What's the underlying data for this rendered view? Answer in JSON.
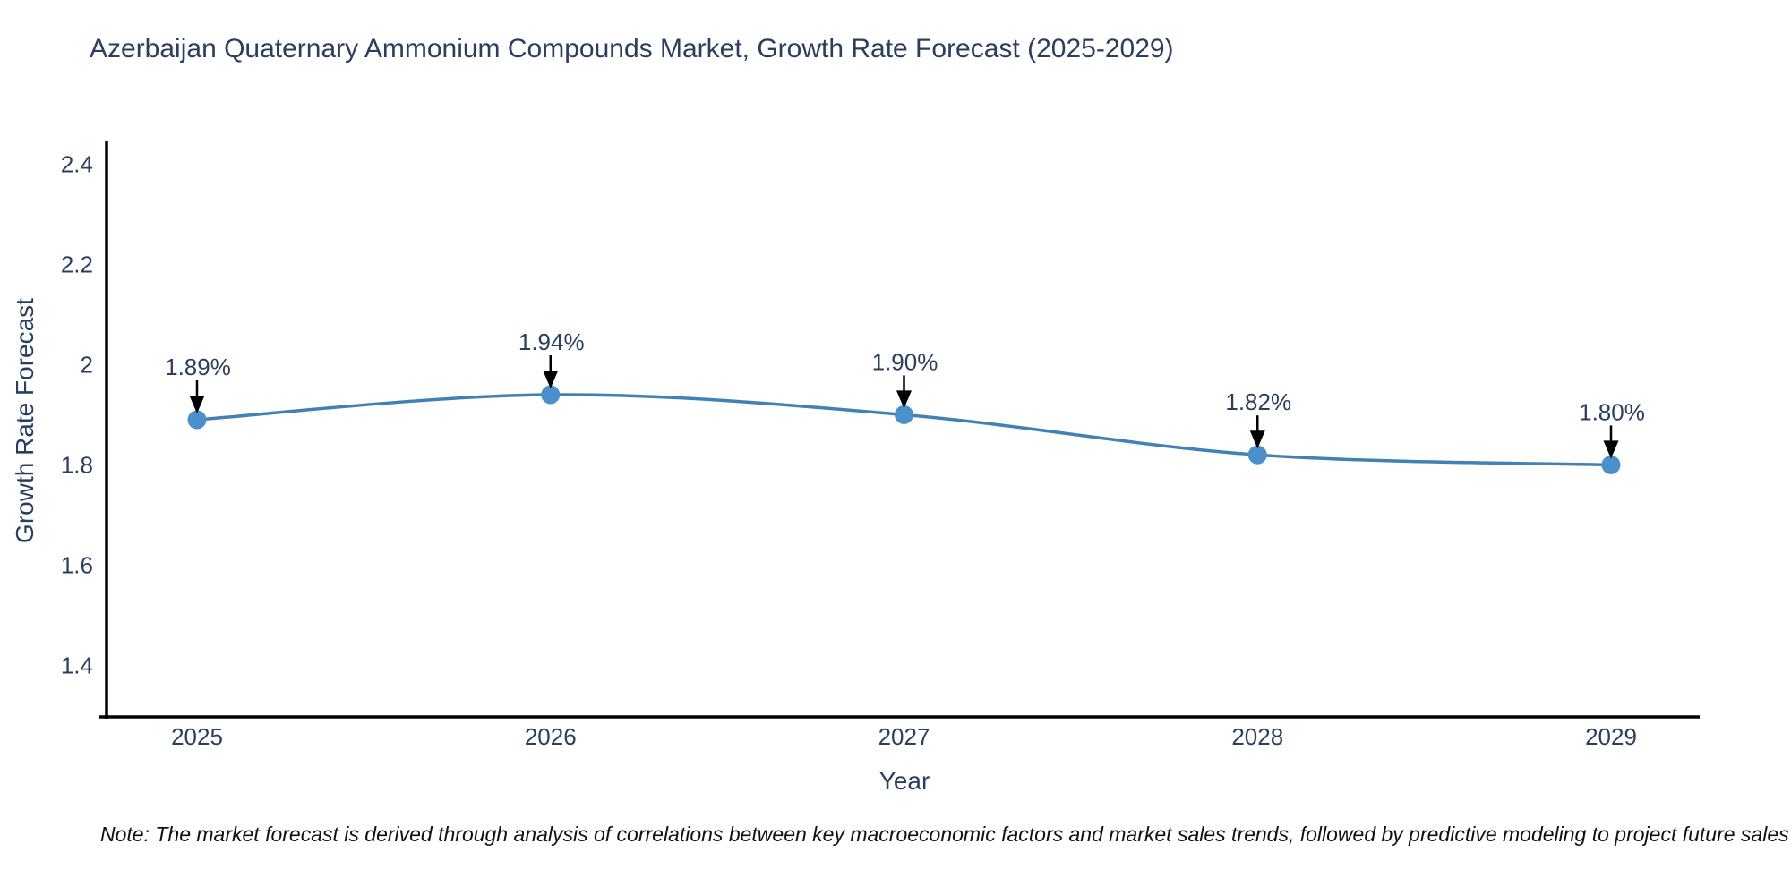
{
  "chart_data": {
    "type": "line",
    "title": "Azerbaijan Quaternary Ammonium Compounds Market, Growth Rate Forecast (2025-2029)",
    "xlabel": "Year",
    "ylabel": "Growth Rate Forecast",
    "x": [
      2025,
      2026,
      2027,
      2028,
      2029
    ],
    "x_tick_labels": [
      "2025",
      "2026",
      "2027",
      "2028",
      "2029"
    ],
    "series": [
      {
        "name": "Growth Rate Forecast",
        "values": [
          1.89,
          1.94,
          1.9,
          1.82,
          1.8
        ],
        "point_labels": [
          "1.89%",
          "1.94%",
          "1.90%",
          "1.82%",
          "1.80%"
        ]
      }
    ],
    "y_ticks": [
      1.4,
      1.6,
      1.8,
      2,
      2.2,
      2.4
    ],
    "y_tick_labels": [
      "1.4",
      "1.6",
      "1.8",
      "2",
      "2.2",
      "2.4"
    ],
    "ylim": [
      1.295,
      2.46
    ],
    "grid": false,
    "legend": "none",
    "line_shape": "spline",
    "annotation_style": "value labels above points with black down arrows",
    "note": "Note: The market forecast is derived through analysis of correlations between key macroeconomic factors and market sales trends, followed by predictive modeling to project future sales",
    "colors": {
      "line": "#4381b5",
      "marker": "#4a90ca",
      "axis": "#000000",
      "text": "#2a3f5f",
      "arrow": "#000000",
      "note_text": "#111111",
      "background": "#ffffff"
    }
  }
}
